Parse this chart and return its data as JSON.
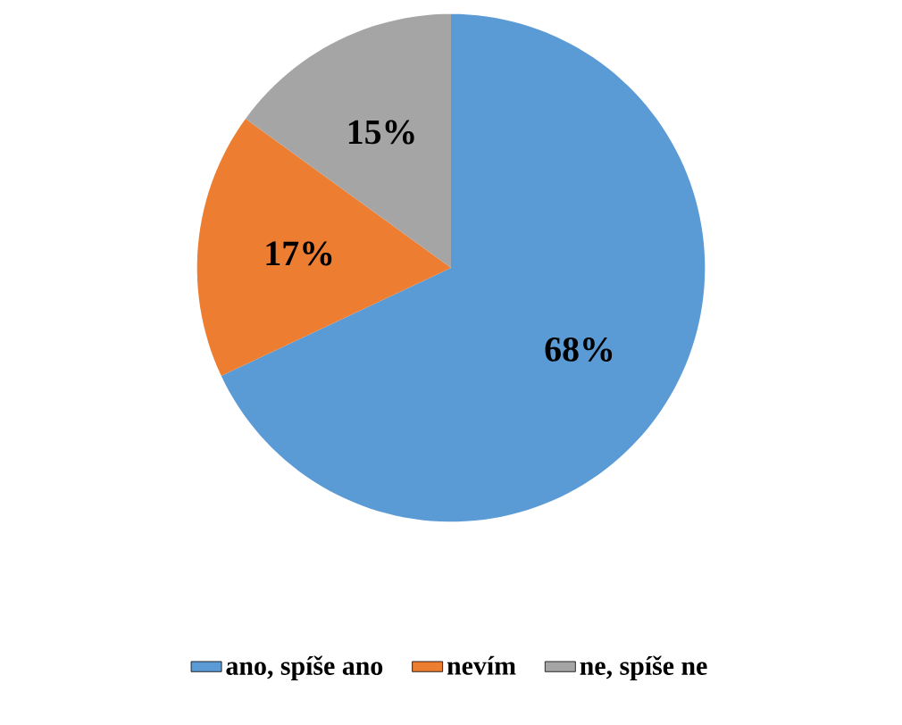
{
  "chart_data": {
    "type": "pie",
    "categories": [
      "ano, spíše ano",
      "nevím",
      "ne, spíše ne"
    ],
    "values": [
      68,
      17,
      15
    ],
    "colors": [
      "#5b9bd5",
      "#ed7d31",
      "#a5a5a5"
    ],
    "value_labels": [
      "68%",
      "17%",
      "15%"
    ],
    "legend": "bottom"
  }
}
